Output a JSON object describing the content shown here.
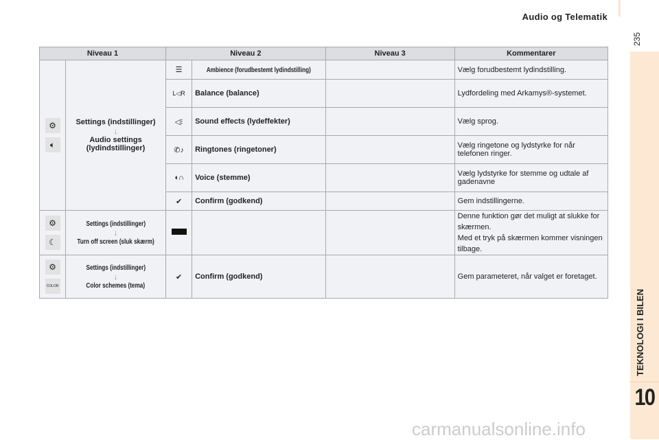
{
  "header": {
    "title": "Audio og Telematik",
    "page_number": "235"
  },
  "side_tab": {
    "chapter_title": "TEKNOLOGI I BILEN",
    "chapter_number": "10"
  },
  "watermark": "carmanualsonline.info",
  "table": {
    "columns": [
      "Niveau 1",
      "Niveau 2",
      "Niveau 3",
      "Kommentarer"
    ],
    "group1": {
      "icons": [
        "gear-icon",
        "speaker-icon"
      ],
      "level1_a": "Settings (indstillinger)",
      "level1_b": "Audio settings (lydindstillinger)",
      "rows": [
        {
          "icon": "equalizer-icon",
          "level2": "Ambience (forudbestemt lydindstilling)",
          "level3": "",
          "comment": "Vælg forudbestemt lydindstilling."
        },
        {
          "icon": "balance-icon",
          "level2": "Balance (balance)",
          "level3": "",
          "comment": "Lydfordeling med Arkamys®-systemet."
        },
        {
          "icon": "sound-effects-icon",
          "level2": "Sound effects (lydeffekter)",
          "level3": "",
          "comment": "Vælg sprog."
        },
        {
          "icon": "ringtone-icon",
          "level2": "Ringtones (ringetoner)",
          "level3": "",
          "comment": "Vælg ringetone og lydstyrke for når telefonen ringer."
        },
        {
          "icon": "voice-icon",
          "level2": "Voice (stemme)",
          "level3": "",
          "comment": "Vælg lydstyrke for stemme og udtale af gadenavne"
        },
        {
          "icon": "check-icon",
          "level2": "Confirm (godkend)",
          "level3": "",
          "comment": "Gem indstillingerne."
        }
      ]
    },
    "group2": {
      "icons": [
        "gear-icon",
        "moon-icon"
      ],
      "level1_a": "Settings (indstillinger)",
      "level1_b": "Turn off screen (sluk skærm)",
      "level2": "",
      "comment_1": "Denne funktion gør det muligt at slukke for skærmen.",
      "comment_2": "Med et tryk på skærmen kommer visningen tilbage."
    },
    "group3": {
      "icons": [
        "gear-icon",
        "color-icon"
      ],
      "level1_a": "Settings (indstillinger)",
      "level1_b": "Color schemes (tema)",
      "color_icon_text": "COLOR",
      "level2": "Confirm (godkend)",
      "comment": "Gem parameteret, når valget er foretaget."
    }
  }
}
